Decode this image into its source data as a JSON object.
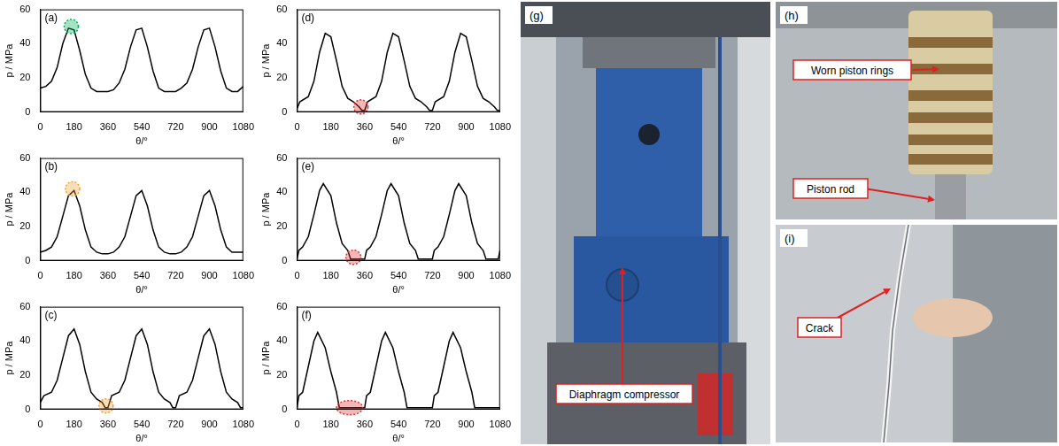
{
  "chart_data": [
    {
      "type": "line",
      "panel": "(a)",
      "color": "#000000",
      "x_label": "θ/°",
      "y_label": "p / MPa",
      "grid": false,
      "xlim": [
        0,
        1080
      ],
      "xticks": [
        0,
        180,
        360,
        540,
        720,
        900,
        1080
      ],
      "ylim": [
        0,
        60
      ],
      "yticks": [
        0,
        20,
        40,
        60
      ],
      "x": [
        0,
        30,
        60,
        90,
        120,
        150,
        180,
        210,
        240,
        270,
        300,
        330,
        360,
        390,
        420,
        450,
        480,
        510,
        540,
        570,
        600,
        630,
        660,
        690,
        720,
        750,
        780,
        810,
        840,
        870,
        900,
        930,
        960,
        990,
        1020,
        1050,
        1080
      ],
      "values": [
        14,
        15,
        18,
        26,
        40,
        49,
        48,
        36,
        22,
        14,
        12,
        12,
        12,
        13,
        17,
        25,
        38,
        48,
        49,
        38,
        24,
        14,
        12,
        12,
        12,
        14,
        17,
        25,
        38,
        48,
        49,
        38,
        24,
        14,
        12,
        12,
        15
      ],
      "highlight": {
        "x": 165,
        "y": 50,
        "color": "#00b050"
      }
    },
    {
      "type": "line",
      "panel": "(b)",
      "color": "#000000",
      "x_label": "θ/°",
      "y_label": "p / MPa",
      "grid": false,
      "xlim": [
        0,
        1080
      ],
      "xticks": [
        0,
        180,
        360,
        540,
        720,
        900,
        1080
      ],
      "ylim": [
        0,
        60
      ],
      "yticks": [
        0,
        20,
        40,
        60
      ],
      "x": [
        0,
        30,
        60,
        90,
        120,
        150,
        180,
        210,
        240,
        270,
        300,
        330,
        360,
        390,
        420,
        450,
        480,
        510,
        540,
        570,
        600,
        630,
        660,
        690,
        720,
        750,
        780,
        810,
        840,
        870,
        900,
        930,
        960,
        990,
        1020,
        1050,
        1080
      ],
      "values": [
        5,
        6,
        8,
        14,
        26,
        38,
        41,
        32,
        18,
        8,
        5,
        4,
        4,
        5,
        8,
        14,
        26,
        38,
        41,
        32,
        18,
        8,
        5,
        4,
        4,
        5,
        8,
        14,
        26,
        38,
        41,
        32,
        18,
        8,
        5,
        5,
        5
      ],
      "highlight": {
        "x": 172,
        "y": 42,
        "color": "#f0a030"
      }
    },
    {
      "type": "line",
      "panel": "(c)",
      "color": "#000000",
      "x_label": "θ/°",
      "y_label": "p / MPa",
      "grid": false,
      "xlim": [
        0,
        1080
      ],
      "xticks": [
        0,
        180,
        360,
        540,
        720,
        900,
        1080
      ],
      "ylim": [
        0,
        60
      ],
      "yticks": [
        0,
        20,
        40,
        60
      ],
      "x": [
        0,
        20,
        60,
        90,
        120,
        150,
        180,
        210,
        240,
        270,
        300,
        330,
        345,
        360,
        380,
        420,
        450,
        480,
        510,
        540,
        570,
        600,
        630,
        660,
        690,
        705,
        720,
        740,
        780,
        810,
        840,
        870,
        900,
        930,
        960,
        990,
        1020,
        1050,
        1065,
        1080
      ],
      "values": [
        4,
        8,
        10,
        17,
        30,
        43,
        47,
        38,
        22,
        10,
        6,
        4,
        1,
        1,
        8,
        10,
        17,
        30,
        43,
        47,
        38,
        22,
        10,
        6,
        4,
        1,
        1,
        8,
        10,
        17,
        30,
        43,
        47,
        38,
        22,
        10,
        6,
        4,
        1,
        1
      ],
      "highlight": {
        "x": 350,
        "y": 2,
        "color": "#f0a030"
      }
    },
    {
      "type": "line",
      "panel": "(d)",
      "color": "#000000",
      "x_label": "θ/°",
      "y_label": "p / MPa",
      "grid": false,
      "xlim": [
        0,
        1080
      ],
      "xticks": [
        0,
        180,
        360,
        540,
        720,
        900,
        1080
      ],
      "ylim": [
        0,
        60
      ],
      "yticks": [
        0,
        20,
        40,
        60
      ],
      "x": [
        0,
        15,
        60,
        90,
        120,
        150,
        180,
        210,
        240,
        270,
        300,
        330,
        345,
        360,
        375,
        420,
        450,
        480,
        510,
        540,
        570,
        600,
        630,
        660,
        690,
        705,
        720,
        735,
        780,
        810,
        840,
        870,
        900,
        930,
        960,
        990,
        1020,
        1050,
        1065,
        1080
      ],
      "values": [
        2,
        6,
        9,
        18,
        35,
        46,
        44,
        30,
        15,
        8,
        6,
        3,
        1,
        1,
        6,
        9,
        18,
        35,
        46,
        44,
        30,
        15,
        8,
        6,
        3,
        1,
        1,
        6,
        9,
        18,
        35,
        46,
        44,
        30,
        15,
        8,
        6,
        3,
        1,
        1
      ],
      "highlight": {
        "x": 340,
        "y": 3,
        "color": "#e03030"
      }
    },
    {
      "type": "line",
      "panel": "(e)",
      "color": "#000000",
      "x_label": "θ/°",
      "y_label": "p / MPa",
      "grid": false,
      "xlim": [
        0,
        1080
      ],
      "xticks": [
        0,
        180,
        360,
        540,
        720,
        900,
        1080
      ],
      "ylim": [
        0,
        60
      ],
      "yticks": [
        0,
        20,
        40,
        60
      ],
      "x": [
        0,
        10,
        30,
        60,
        90,
        120,
        140,
        180,
        210,
        240,
        270,
        285,
        300,
        330,
        350,
        360,
        370,
        390,
        420,
        450,
        480,
        500,
        540,
        570,
        600,
        630,
        645,
        660,
        690,
        710,
        720,
        730,
        750,
        780,
        810,
        840,
        860,
        900,
        930,
        960,
        990,
        1005,
        1020,
        1050,
        1070,
        1080
      ],
      "values": [
        1,
        6,
        8,
        14,
        27,
        41,
        45,
        38,
        22,
        10,
        6,
        1,
        1,
        1,
        1,
        1,
        6,
        8,
        14,
        27,
        41,
        45,
        38,
        22,
        10,
        6,
        1,
        1,
        1,
        1,
        1,
        6,
        8,
        14,
        27,
        41,
        45,
        38,
        22,
        10,
        6,
        1,
        1,
        1,
        1,
        6
      ],
      "highlight": {
        "x": [
          260,
          340
        ],
        "y": 2,
        "color": "#e03030"
      }
    },
    {
      "type": "line",
      "panel": "(f)",
      "color": "#000000",
      "x_label": "θ/°",
      "y_label": "p / MPa",
      "grid": false,
      "xlim": [
        0,
        1080
      ],
      "xticks": [
        0,
        180,
        360,
        540,
        720,
        900,
        1080
      ],
      "ylim": [
        0,
        60
      ],
      "yticks": [
        0,
        20,
        40,
        60
      ],
      "x": [
        0,
        10,
        30,
        60,
        90,
        110,
        150,
        180,
        210,
        225,
        260,
        300,
        340,
        360,
        370,
        390,
        420,
        450,
        470,
        510,
        540,
        570,
        585,
        620,
        660,
        700,
        720,
        730,
        750,
        780,
        810,
        830,
        870,
        900,
        930,
        945,
        980,
        1020,
        1060,
        1080
      ],
      "values": [
        1,
        8,
        10,
        25,
        40,
        45,
        36,
        22,
        10,
        1,
        1,
        1,
        1,
        1,
        8,
        10,
        25,
        40,
        45,
        36,
        22,
        10,
        1,
        1,
        1,
        1,
        1,
        8,
        10,
        25,
        40,
        45,
        36,
        22,
        10,
        1,
        1,
        1,
        1,
        1
      ],
      "highlight": {
        "x": [
          210,
          350
        ],
        "y": 1,
        "color": "#e03030"
      }
    }
  ],
  "photos": [
    {
      "label": "(g)",
      "annotations": [
        {
          "text": "Diaphragm compressor"
        }
      ]
    },
    {
      "label": "(h)",
      "annotations": [
        {
          "text": "Worn piston rings"
        },
        {
          "text": "Piston rod"
        }
      ]
    },
    {
      "label": "(i)",
      "annotations": [
        {
          "text": "Crack"
        }
      ]
    }
  ]
}
